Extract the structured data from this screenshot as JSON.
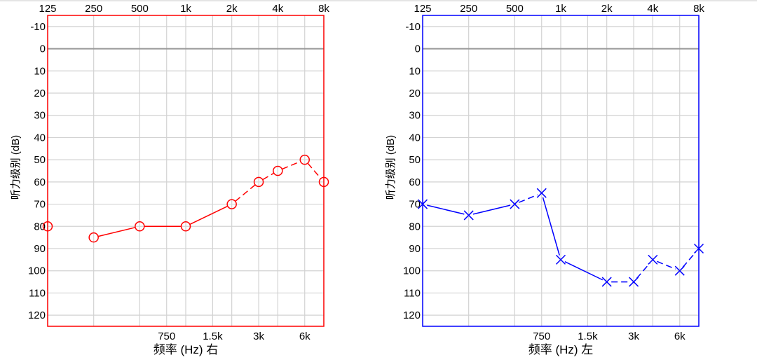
{
  "chart_data": [
    {
      "type": "line",
      "ear": "right",
      "xlabel": "频率 (Hz) 右",
      "ylabel": "听力级别 (dB)",
      "top_ticks": [
        "125",
        "250",
        "500",
        "1k",
        "2k",
        "4k",
        "8k"
      ],
      "bottom_ticks": [
        "750",
        "1.5k",
        "3k",
        "6k"
      ],
      "y_ticks": [
        "-10",
        "0",
        "10",
        "20",
        "30",
        "40",
        "50",
        "60",
        "70",
        "80",
        "90",
        "100",
        "110",
        "120"
      ],
      "ylim": [
        -15,
        125
      ],
      "xlim_hz": [
        125,
        8000
      ],
      "marker": "circle",
      "color": "#ff0000",
      "axis_line_color": "#ff0000",
      "zero_line_color": "#999999",
      "grid": true,
      "series": [
        {
          "x": [
            125,
            250,
            500,
            1000,
            2000,
            3000,
            4000,
            6000,
            8000
          ],
          "y": [
            80,
            85,
            80,
            80,
            70,
            60,
            55,
            50,
            60
          ]
        }
      ],
      "segments": [
        {
          "from": 1,
          "to": 2,
          "style": "solid"
        },
        {
          "from": 2,
          "to": 3,
          "style": "solid"
        },
        {
          "from": 3,
          "to": 4,
          "style": "solid"
        },
        {
          "from": 4,
          "to": 5,
          "style": "dashed"
        },
        {
          "from": 5,
          "to": 6,
          "style": "dashed"
        },
        {
          "from": 6,
          "to": 7,
          "style": "dashed"
        },
        {
          "from": 7,
          "to": 8,
          "style": "dashed"
        }
      ]
    },
    {
      "type": "line",
      "ear": "left",
      "xlabel": "频率 (Hz) 左",
      "ylabel": "听力级别 (dB)",
      "top_ticks": [
        "125",
        "250",
        "500",
        "1k",
        "2k",
        "4k",
        "8k"
      ],
      "bottom_ticks": [
        "750",
        "1.5k",
        "3k",
        "6k"
      ],
      "y_ticks": [
        "-10",
        "0",
        "10",
        "20",
        "30",
        "40",
        "50",
        "60",
        "70",
        "80",
        "90",
        "100",
        "110",
        "120"
      ],
      "ylim": [
        -15,
        125
      ],
      "xlim_hz": [
        125,
        8000
      ],
      "marker": "cross",
      "color": "#0000ff",
      "axis_line_color": "#0000ff",
      "zero_line_color": "#999999",
      "grid": true,
      "series": [
        {
          "x": [
            125,
            250,
            500,
            750,
            1000,
            2000,
            3000,
            4000,
            6000,
            8000
          ],
          "y": [
            70,
            75,
            70,
            65,
            95,
            105,
            105,
            95,
            100,
            90
          ]
        }
      ],
      "segments": [
        {
          "from": 0,
          "to": 1,
          "style": "solid"
        },
        {
          "from": 1,
          "to": 2,
          "style": "solid"
        },
        {
          "from": 2,
          "to": 3,
          "style": "dashed"
        },
        {
          "from": 3,
          "to": 4,
          "style": "solid"
        },
        {
          "from": 4,
          "to": 5,
          "style": "solid"
        },
        {
          "from": 5,
          "to": 6,
          "style": "dashed"
        },
        {
          "from": 6,
          "to": 7,
          "style": "dashed"
        },
        {
          "from": 7,
          "to": 8,
          "style": "dashed"
        },
        {
          "from": 8,
          "to": 9,
          "style": "dashed"
        }
      ]
    }
  ]
}
